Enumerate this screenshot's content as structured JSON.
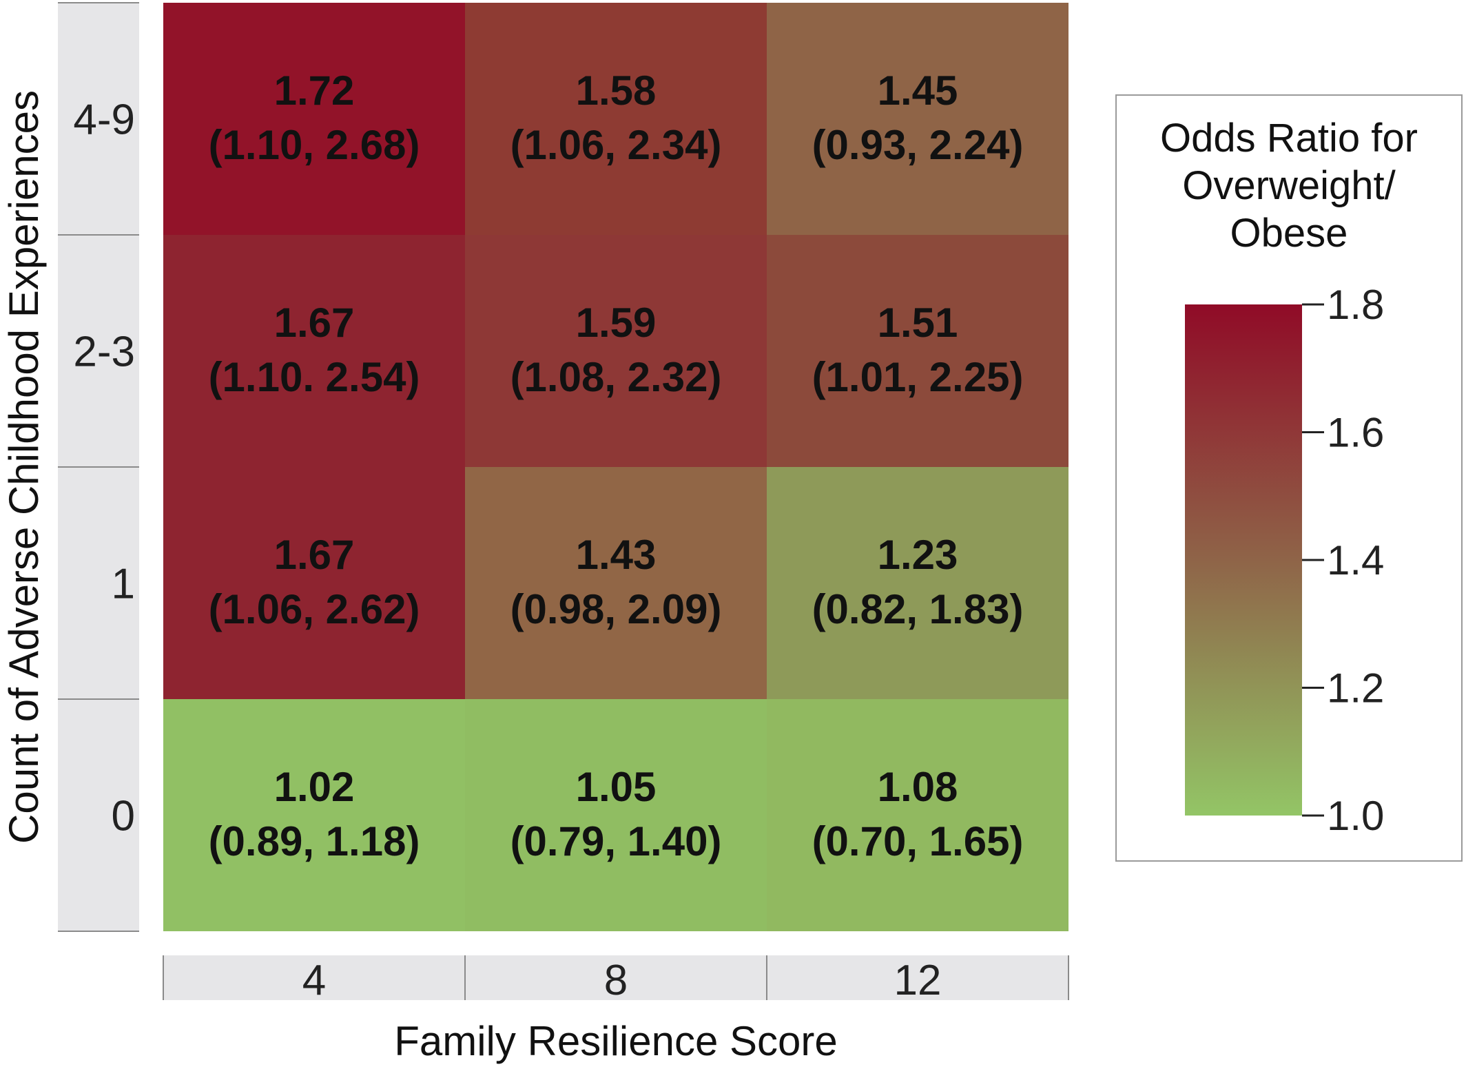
{
  "chart_data": {
    "type": "heatmap",
    "title": "",
    "xlabel": "Family Resilience Score",
    "ylabel": "Count of Adverse Childhood Experiences",
    "x_categories": [
      "4",
      "8",
      "12"
    ],
    "y_categories": [
      "4-9",
      "2-3",
      "1",
      "0"
    ],
    "cells": [
      [
        {
          "value": "1.72",
          "ci": "(1.10, 2.68)",
          "or": 1.72,
          "color": "#921329"
        },
        {
          "value": "1.58",
          "ci": "(1.06, 2.34)",
          "or": 1.58,
          "color": "#8e3b33"
        },
        {
          "value": "1.45",
          "ci": "(0.93, 2.24)",
          "or": 1.45,
          "color": "#8f6447"
        }
      ],
      [
        {
          "value": "1.67",
          "ci": "(1.10. 2.54)",
          "or": 1.67,
          "color": "#8e2430"
        },
        {
          "value": "1.59",
          "ci": "(1.08, 2.32)",
          "or": 1.59,
          "color": "#8e3836"
        },
        {
          "value": "1.51",
          "ci": "(1.01, 2.25)",
          "or": 1.51,
          "color": "#8c4a3b"
        }
      ],
      [
        {
          "value": "1.67",
          "ci": "(1.06, 2.62)",
          "or": 1.67,
          "color": "#8e2430"
        },
        {
          "value": "1.43",
          "ci": "(0.98, 2.09)",
          "or": 1.43,
          "color": "#916646"
        },
        {
          "value": "1.23",
          "ci": "(0.82, 1.83)",
          "or": 1.23,
          "color": "#8e9a59"
        }
      ],
      [
        {
          "value": "1.02",
          "ci": "(0.89, 1.18)",
          "or": 1.02,
          "color": "#91c064"
        },
        {
          "value": "1.05",
          "ci": "(0.79, 1.40)",
          "or": 1.05,
          "color": "#90bd62"
        },
        {
          "value": "1.08",
          "ci": "(0.70, 1.65)",
          "or": 1.08,
          "color": "#91b960"
        }
      ]
    ],
    "legend": {
      "title_lines": [
        "Odds Ratio for",
        "Overweight/",
        "Obese"
      ],
      "min": 1.0,
      "max": 1.8,
      "ticks": [
        "1.8",
        "1.6",
        "1.4",
        "1.2",
        "1.0"
      ],
      "tick_values": [
        1.8,
        1.6,
        1.4,
        1.2,
        1.0
      ],
      "color_low": "#93c566",
      "color_mid": "#8f6448",
      "color_high": "#900b27",
      "placement": "right"
    },
    "strip_color": "#e6e6e8",
    "grid": false
  }
}
